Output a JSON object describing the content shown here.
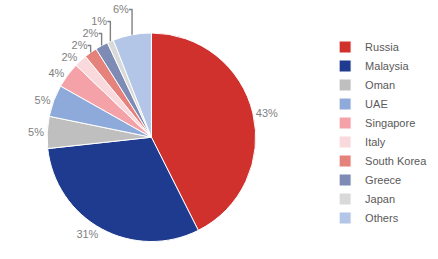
{
  "chart_data": {
    "type": "pie",
    "categories": [
      "Russia",
      "Malaysia",
      "Oman",
      "UAE",
      "Singapore",
      "Italy",
      "South Korea",
      "Greece",
      "Japan",
      "Others"
    ],
    "values": [
      43,
      31,
      5,
      5,
      4,
      2,
      2,
      2,
      1,
      6
    ],
    "value_labels": [
      "43%",
      "31%",
      "5%",
      "5%",
      "4%",
      "2%",
      "2%",
      "2%",
      "1%",
      "6%"
    ],
    "colors": [
      "#d0312d",
      "#1f3b8f",
      "#bfbfbf",
      "#8eaadb",
      "#f4a1a8",
      "#f9d9dc",
      "#e5827b",
      "#7d8bb5",
      "#d9d9d9",
      "#b4c6e7"
    ],
    "data_labels": true,
    "legend": "right"
  }
}
